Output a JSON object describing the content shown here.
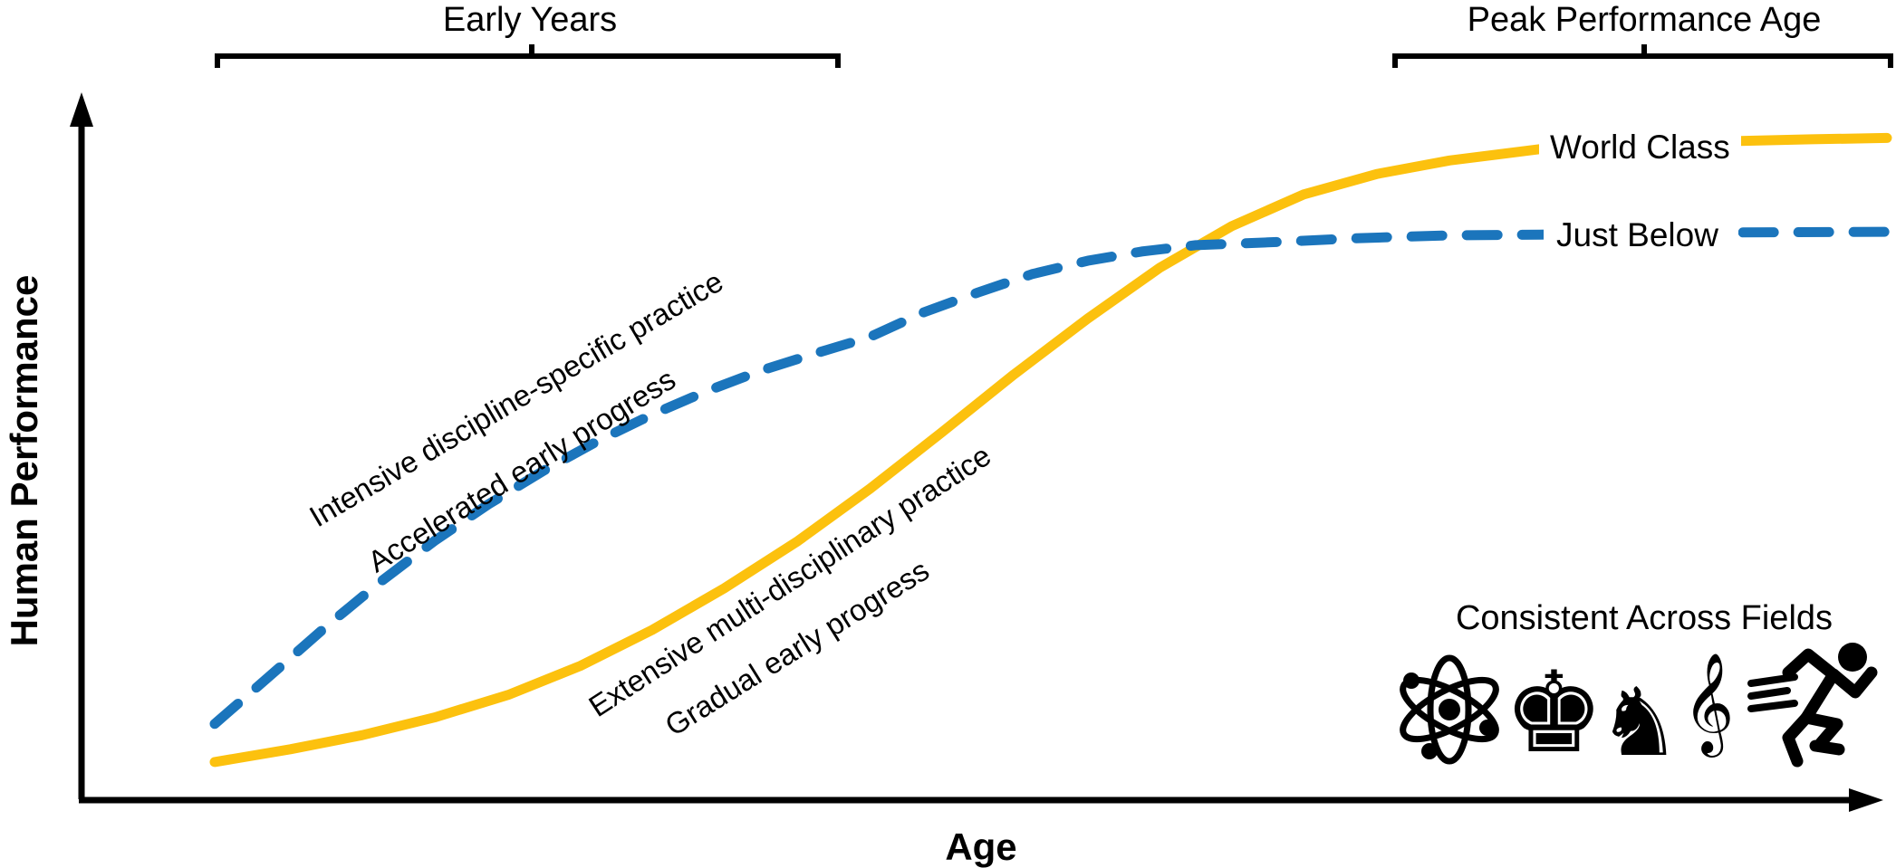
{
  "axes": {
    "x_title": "Age",
    "y_title": "Human Performance"
  },
  "brackets": {
    "early": "Early Years",
    "peak": "Peak Performance Age"
  },
  "legend": {
    "world_class": "World Class",
    "just_below": "Just Below"
  },
  "annotations": {
    "blue_line1": "Intensive discipline-specific practice",
    "blue_line2": "Accelerated early progress",
    "yellow_line1": "Extensive multi-disciplinary practice",
    "yellow_line2": "Gradual early progress"
  },
  "fields": {
    "title": "Consistent Across Fields",
    "chess_king": "♚",
    "chess_knight": "♞",
    "treble_clef": "𝄞",
    "icon_meanings": [
      "science (atom)",
      "chess",
      "music (treble clef)",
      "athletics (sprinter)"
    ]
  },
  "colors": {
    "yellow": "#FCC10E",
    "blue": "#1B75BC",
    "ink": "#000000"
  },
  "chart_data": {
    "type": "line",
    "title": "",
    "xlabel": "Age",
    "ylabel": "Human Performance",
    "axes_qualitative": true,
    "grid": false,
    "legend_position": "inline labels interrupting curves at right",
    "x_range_annotations": [
      {
        "label": "Early Years",
        "x_frac_start": 0.075,
        "x_frac_end": 0.42
      },
      {
        "label": "Peak Performance Age",
        "x_frac_start": 0.73,
        "x_frac_end": 1.0
      }
    ],
    "series": [
      {
        "name": "World Class",
        "style": "solid",
        "color": "#FCC10E",
        "annotations": [
          "Extensive multi-disciplinary practice",
          "Gradual early progress"
        ],
        "x_frac": [
          0.074,
          0.116,
          0.156,
          0.196,
          0.237,
          0.277,
          0.317,
          0.357,
          0.398,
          0.438,
          0.478,
          0.518,
          0.559,
          0.599,
          0.639,
          0.679,
          0.72,
          0.76,
          0.81,
          0.861,
          0.911,
          0.961,
          1.003
        ],
        "y_frac": [
          0.054,
          0.072,
          0.092,
          0.117,
          0.149,
          0.19,
          0.241,
          0.3,
          0.367,
          0.441,
          0.521,
          0.603,
          0.682,
          0.754,
          0.813,
          0.858,
          0.887,
          0.906,
          0.922,
          0.929,
          0.933,
          0.936,
          0.938
        ]
      },
      {
        "name": "Just Below",
        "style": "dashed",
        "color": "#1B75BC",
        "annotations": [
          "Intensive discipline-specific practice",
          "Accelerated early progress"
        ],
        "x_frac": [
          0.074,
          0.106,
          0.136,
          0.166,
          0.196,
          0.226,
          0.257,
          0.287,
          0.317,
          0.347,
          0.377,
          0.408,
          0.438,
          0.468,
          0.498,
          0.528,
          0.559,
          0.589,
          0.619,
          0.659,
          0.71,
          0.76,
          0.81,
          0.861,
          0.911,
          1.003
        ],
        "y_frac": [
          0.108,
          0.179,
          0.246,
          0.309,
          0.367,
          0.419,
          0.467,
          0.509,
          0.546,
          0.579,
          0.608,
          0.633,
          0.656,
          0.691,
          0.719,
          0.745,
          0.764,
          0.777,
          0.786,
          0.79,
          0.796,
          0.8,
          0.801,
          0.803,
          0.804,
          0.805
        ]
      }
    ],
    "footnote": {
      "title": "Consistent Across Fields",
      "fields": [
        "science",
        "chess",
        "music",
        "athletics"
      ]
    }
  }
}
